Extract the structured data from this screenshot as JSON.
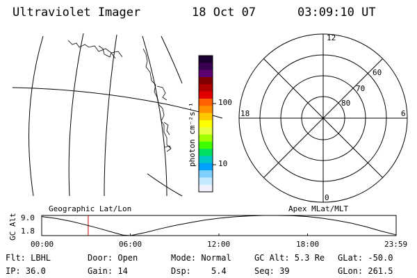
{
  "header": {
    "instrument": "Ultraviolet Imager",
    "date": "18 Oct 07",
    "time": "03:09:10 UT"
  },
  "colorbar": {
    "label": "photon cm⁻²s⁻¹",
    "ticks": [
      "100",
      "10"
    ],
    "colors": [
      "#1a0030",
      "#3a0050",
      "#5a0070",
      "#800000",
      "#b00000",
      "#e00000",
      "#ff6000",
      "#ff9000",
      "#ffc800",
      "#ffff00",
      "#e8ff40",
      "#a0ff00",
      "#40ff00",
      "#00e060",
      "#00c8c8",
      "#00a0ff",
      "#80d0ff",
      "#c0e8ff",
      "#f0f0ff"
    ]
  },
  "polar_plot": {
    "mlt_labels": [
      "12",
      "18",
      "6",
      "0"
    ],
    "lat_labels": [
      "60",
      "70",
      "80"
    ]
  },
  "timeline": {
    "ylabel": "GC Alt",
    "left_title": "Geographic Lat/Lon",
    "right_title": "Apex MLat/MLT",
    "y_ticks": [
      "9.0",
      "1.8"
    ],
    "x_ticks": [
      "00:00",
      "06:00",
      "12:00",
      "18:00",
      "23:59"
    ],
    "marker_color": "#c00000"
  },
  "chart_data": {
    "type": "line",
    "title": "",
    "xlabel": "",
    "ylabel": "GC Alt",
    "x_unit": "hour UT",
    "xlim": [
      0,
      24
    ],
    "ylim": [
      1.8,
      9.0
    ],
    "x": [
      0,
      1,
      2,
      3,
      4,
      5,
      5.5,
      6,
      7,
      8,
      9,
      10,
      11,
      12,
      13,
      14,
      15,
      16,
      17,
      18,
      19,
      20,
      21,
      22,
      23,
      23.98
    ],
    "y": [
      8.6,
      7.9,
      6.9,
      5.6,
      4.2,
      2.7,
      2.0,
      1.8,
      2.9,
      4.2,
      5.4,
      6.4,
      7.3,
      8.0,
      8.5,
      8.8,
      9.0,
      9.0,
      8.9,
      8.6,
      8.0,
      7.2,
      6.2,
      4.9,
      3.4,
      2.1
    ],
    "marker_x": 3.15
  },
  "info": {
    "flt": "Flt: LBHL",
    "ip": "IP: 36.0",
    "door": "Door: Open",
    "gain": "Gain: 14",
    "mode": "Mode: Normal",
    "dsp_label": "Dsp:",
    "dsp_value": "5.4",
    "gc_alt": "GC Alt: 5.3 Re",
    "seq": "Seq: 39",
    "glat": "GLat: -50.0",
    "glon": "GLon: 261.5"
  }
}
